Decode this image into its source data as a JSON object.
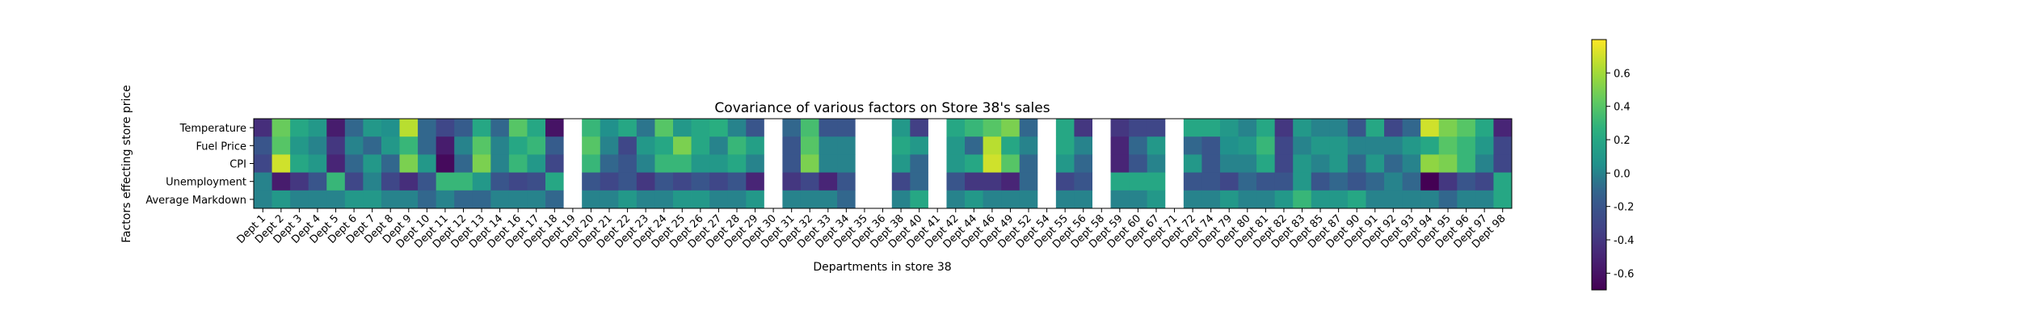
{
  "chart_data": {
    "type": "heatmap",
    "title": "Covariance of various factors on Store 38's sales",
    "xlabel": "Departments in store 38",
    "ylabel": "Factors effecting store price",
    "rows": [
      "Temperature",
      "Fuel Price",
      "CPI",
      "Unemployment",
      "Average Markdown"
    ],
    "columns": [
      "Dept 1",
      "Dept 2",
      "Dept 3",
      "Dept 4",
      "Dept 5",
      "Dept 6",
      "Dept 7",
      "Dept 8",
      "Dept 9",
      "Dept 10",
      "Dept 11",
      "Dept 12",
      "Dept 13",
      "Dept 14",
      "Dept 16",
      "Dept 17",
      "Dept 18",
      "Dept 19",
      "Dept 20",
      "Dept 21",
      "Dept 22",
      "Dept 23",
      "Dept 24",
      "Dept 25",
      "Dept 26",
      "Dept 27",
      "Dept 28",
      "Dept 29",
      "Dept 30",
      "Dept 31",
      "Dept 32",
      "Dept 33",
      "Dept 34",
      "Dept 35",
      "Dept 36",
      "Dept 38",
      "Dept 40",
      "Dept 41",
      "Dept 42",
      "Dept 44",
      "Dept 46",
      "Dept 49",
      "Dept 52",
      "Dept 54",
      "Dept 55",
      "Dept 56",
      "Dept 58",
      "Dept 59",
      "Dept 60",
      "Dept 67",
      "Dept 71",
      "Dept 72",
      "Dept 74",
      "Dept 79",
      "Dept 80",
      "Dept 81",
      "Dept 82",
      "Dept 83",
      "Dept 85",
      "Dept 87",
      "Dept 90",
      "Dept 91",
      "Dept 92",
      "Dept 93",
      "Dept 94",
      "Dept 95",
      "Dept 96",
      "Dept 97",
      "Dept 98"
    ],
    "values": [
      [
        -0.45,
        0.45,
        0.2,
        0.1,
        -0.55,
        -0.1,
        0.1,
        0.05,
        0.65,
        -0.1,
        -0.3,
        -0.15,
        0.2,
        -0.1,
        0.4,
        0.2,
        -0.6,
        null,
        0.3,
        0.05,
        0.2,
        -0.05,
        0.4,
        0.1,
        0.2,
        0.25,
        0.0,
        -0.2,
        null,
        -0.1,
        0.35,
        -0.2,
        -0.2,
        null,
        null,
        0.1,
        -0.35,
        null,
        0.2,
        0.3,
        0.4,
        0.5,
        -0.1,
        null,
        0.2,
        -0.4,
        null,
        -0.4,
        -0.3,
        -0.3,
        null,
        0.2,
        0.2,
        0.1,
        0.0,
        0.2,
        -0.4,
        0.1,
        0.0,
        0.0,
        -0.2,
        0.2,
        -0.3,
        -0.1,
        0.7,
        0.5,
        0.4,
        0.2,
        -0.5
      ],
      [
        -0.2,
        0.4,
        0.1,
        0.0,
        -0.4,
        0.0,
        -0.1,
        0.1,
        0.3,
        -0.1,
        -0.55,
        0.0,
        0.4,
        0.0,
        0.2,
        0.3,
        -0.15,
        null,
        0.4,
        0.0,
        -0.3,
        0.1,
        0.2,
        0.5,
        0.2,
        0.0,
        0.3,
        0.15,
        null,
        -0.2,
        0.4,
        0.0,
        0.0,
        null,
        null,
        0.2,
        0.1,
        null,
        0.1,
        -0.1,
        0.65,
        0.2,
        0.0,
        null,
        0.2,
        0.0,
        null,
        -0.5,
        -0.1,
        0.1,
        null,
        -0.1,
        -0.2,
        0.05,
        0.1,
        0.3,
        -0.3,
        0.0,
        0.1,
        0.1,
        0.0,
        0.0,
        0.0,
        0.1,
        0.2,
        0.4,
        0.3,
        0.1,
        -0.3
      ],
      [
        -0.3,
        0.7,
        0.2,
        0.1,
        -0.5,
        -0.1,
        0.1,
        -0.1,
        0.5,
        0.1,
        -0.65,
        -0.1,
        0.5,
        0.0,
        0.3,
        0.1,
        -0.3,
        null,
        0.3,
        -0.1,
        -0.2,
        0.0,
        0.3,
        0.3,
        0.1,
        0.1,
        0.2,
        0.0,
        null,
        -0.2,
        0.5,
        0.0,
        0.0,
        null,
        null,
        0.1,
        -0.1,
        null,
        0.1,
        0.2,
        0.7,
        0.4,
        -0.1,
        null,
        0.1,
        -0.1,
        null,
        -0.5,
        -0.2,
        0.0,
        null,
        0.1,
        -0.2,
        0.0,
        0.0,
        0.2,
        -0.3,
        0.1,
        0.0,
        0.1,
        -0.1,
        0.1,
        -0.1,
        0.0,
        0.55,
        0.5,
        0.3,
        0.0,
        -0.3
      ],
      [
        0.0,
        -0.55,
        -0.4,
        -0.2,
        0.3,
        -0.3,
        0.0,
        -0.3,
        -0.45,
        -0.2,
        0.3,
        0.3,
        0.1,
        -0.2,
        -0.3,
        -0.25,
        0.2,
        null,
        -0.2,
        -0.3,
        -0.2,
        -0.4,
        -0.2,
        -0.3,
        -0.2,
        -0.3,
        -0.2,
        -0.5,
        null,
        -0.4,
        -0.3,
        -0.5,
        -0.2,
        null,
        null,
        -0.3,
        -0.1,
        null,
        -0.2,
        -0.4,
        -0.4,
        -0.5,
        -0.1,
        null,
        -0.3,
        -0.2,
        null,
        0.2,
        0.2,
        0.2,
        null,
        -0.2,
        -0.2,
        -0.3,
        -0.1,
        -0.2,
        -0.2,
        0.1,
        -0.2,
        -0.1,
        -0.2,
        -0.1,
        0.0,
        -0.1,
        -0.7,
        -0.4,
        -0.2,
        -0.3,
        0.2
      ],
      [
        0.0,
        0.1,
        0.0,
        0.0,
        0.0,
        0.1,
        0.1,
        0.0,
        0.0,
        -0.1,
        0.0,
        -0.1,
        -0.1,
        0.0,
        0.0,
        0.0,
        -0.1,
        null,
        0.0,
        0.0,
        0.1,
        0.0,
        0.0,
        0.1,
        0.1,
        0.0,
        0.0,
        0.1,
        null,
        0.0,
        0.0,
        0.0,
        -0.1,
        null,
        null,
        0.0,
        0.2,
        null,
        0.0,
        0.1,
        0.0,
        0.0,
        0.0,
        null,
        0.0,
        0.0,
        null,
        0.0,
        0.0,
        0.1,
        null,
        0.0,
        0.0,
        0.1,
        0.0,
        0.0,
        0.1,
        0.3,
        0.1,
        0.1,
        0.2,
        0.0,
        0.0,
        0.0,
        0.0,
        -0.1,
        0.0,
        0.0,
        0.2
      ]
    ],
    "vmin": -0.7,
    "vmax": 0.8,
    "colormap": "viridis",
    "colorbar_ticks": [
      "-0.6",
      "-0.4",
      "-0.2",
      "0.0",
      "0.2",
      "0.4",
      "0.6"
    ],
    "colorbar_tick_values": [
      -0.6,
      -0.4,
      -0.2,
      0.0,
      0.2,
      0.4,
      0.6
    ]
  }
}
